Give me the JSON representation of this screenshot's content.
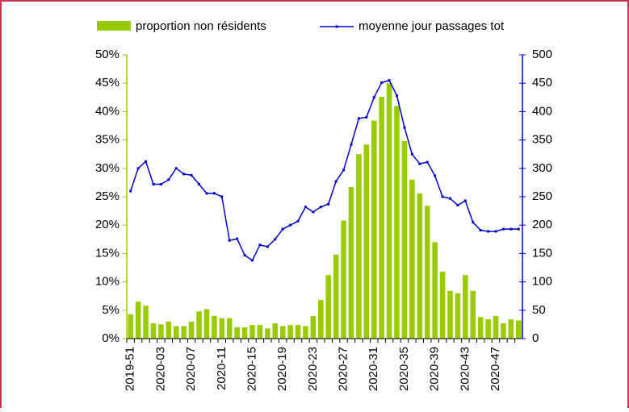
{
  "chart_data": {
    "type": "bar-line",
    "categories": [
      "2019-51",
      null,
      null,
      null,
      "2020-03",
      null,
      null,
      null,
      "2020-07",
      null,
      null,
      null,
      "2020-11",
      null,
      null,
      null,
      "2020-15",
      null,
      null,
      null,
      "2020-19",
      null,
      null,
      null,
      "2020-23",
      null,
      null,
      null,
      "2020-27",
      null,
      null,
      null,
      "2020-31",
      null,
      null,
      null,
      "2020-35",
      null,
      null,
      null,
      "2020-39",
      null,
      null,
      null,
      "2020-43",
      null,
      null,
      null,
      "2020-47",
      null,
      null,
      null
    ],
    "series": [
      {
        "name": "proportion non résidents",
        "type": "bar",
        "color": "#99cc00",
        "values": [
          4.3,
          6.5,
          5.8,
          2.7,
          2.5,
          3.0,
          2.2,
          2.2,
          3.0,
          4.8,
          5.2,
          4.0,
          3.6,
          3.6,
          2.0,
          2.0,
          2.4,
          2.4,
          1.8,
          2.7,
          2.2,
          2.4,
          2.4,
          2.2,
          4.0,
          6.8,
          11.2,
          14.8,
          20.8,
          26.7,
          32.5,
          34.2,
          38.4,
          42.6,
          45.0,
          41.0,
          34.8,
          28.0,
          25.6,
          23.4,
          17.0,
          11.8,
          8.4,
          8.0,
          11.2,
          8.4,
          3.8,
          3.4,
          4.0,
          2.7,
          3.4,
          3.2
        ]
      },
      {
        "name": "moyenne jour passages tot",
        "type": "line",
        "axis": "y2",
        "color": "#0000cc",
        "values": [
          260,
          300,
          312,
          272,
          272,
          280,
          300,
          290,
          288,
          272,
          256,
          256,
          250,
          173,
          176,
          147,
          138,
          165,
          162,
          175,
          193,
          200,
          207,
          232,
          223,
          232,
          237,
          277,
          297,
          342,
          388,
          390,
          425,
          451,
          455,
          428,
          372,
          325,
          308,
          311,
          287,
          250,
          247,
          235,
          243,
          205,
          191,
          189,
          189,
          193,
          193,
          193
        ]
      }
    ],
    "ylim": [
      0,
      50
    ],
    "yticks": [
      {
        "value": 0,
        "label": "0%"
      },
      {
        "value": 5,
        "label": "5%"
      },
      {
        "value": 10,
        "label": "10%"
      },
      {
        "value": 15,
        "label": "15%"
      },
      {
        "value": 20,
        "label": "20%"
      },
      {
        "value": 25,
        "label": "25%"
      },
      {
        "value": 30,
        "label": "30%"
      },
      {
        "value": 35,
        "label": "35%"
      },
      {
        "value": 40,
        "label": "40%"
      },
      {
        "value": 45,
        "label": "45%"
      },
      {
        "value": 50,
        "label": "50%"
      }
    ],
    "y2lim": [
      0,
      500
    ],
    "y2ticks": [
      0,
      50,
      100,
      150,
      200,
      250,
      300,
      350,
      400,
      450,
      500
    ]
  }
}
